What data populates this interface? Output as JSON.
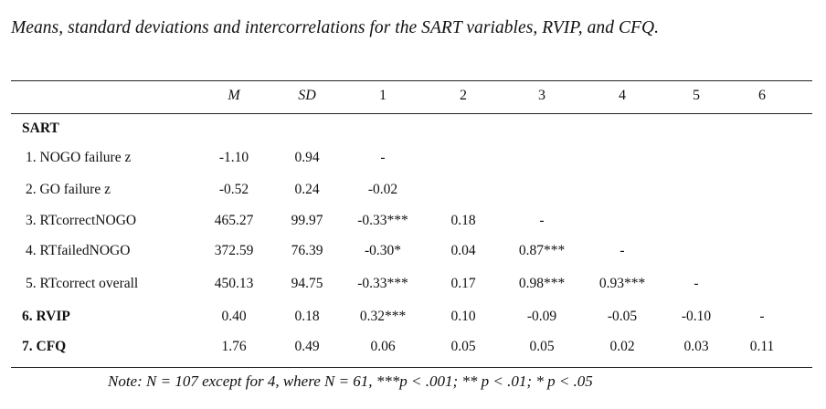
{
  "caption": "Means, standard deviations and intercorrelations for the SART variables, RVIP, and CFQ.",
  "table": {
    "headers": [
      "M",
      "SD",
      "1",
      "2",
      "3",
      "4",
      "5",
      "6"
    ],
    "section_label": "SART",
    "rows": [
      {
        "label": "1. NOGO failure z",
        "bold": false,
        "cells": [
          "-1.10",
          "0.94",
          "-",
          "",
          "",
          "",
          "",
          ""
        ]
      },
      {
        "label": "2. GO failure z",
        "bold": false,
        "cells": [
          "-0.52",
          "0.24",
          "-0.02",
          "",
          "",
          "",
          "",
          ""
        ]
      },
      {
        "label": "3. RTcorrectNOGO",
        "bold": false,
        "cells": [
          "465.27",
          "99.97",
          "-0.33***",
          "0.18",
          "-",
          "",
          "",
          ""
        ]
      },
      {
        "label": "4. RTfailedNOGO",
        "bold": false,
        "cells": [
          "372.59",
          "76.39",
          "-0.30*",
          "0.04",
          "0.87***",
          "-",
          "",
          ""
        ]
      },
      {
        "label": "5. RTcorrect overall",
        "bold": false,
        "cells": [
          "450.13",
          "94.75",
          "-0.33***",
          "0.17",
          "0.98***",
          "0.93***",
          "-",
          ""
        ]
      },
      {
        "label": "6. RVIP",
        "bold": true,
        "cells": [
          "0.40",
          "0.18",
          "0.32***",
          "0.10",
          "-0.09",
          "-0.05",
          "-0.10",
          "-"
        ]
      },
      {
        "label": "7. CFQ",
        "bold": true,
        "cells": [
          "1.76",
          "0.49",
          "0.06",
          "0.05",
          "0.05",
          "0.02",
          "0.03",
          "0.11"
        ]
      }
    ]
  },
  "note": "Note: N = 107 except for 4, where N = 61, ***p < .001; ** p < .01; * p < .05"
}
